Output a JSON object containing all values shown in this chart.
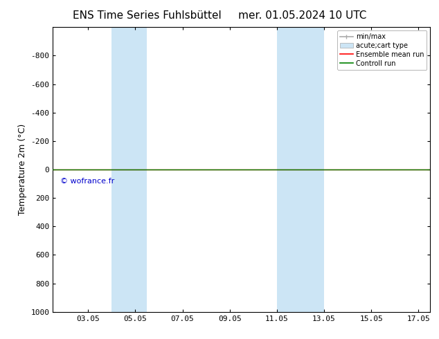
{
  "title_left": "ENS Time Series Fuhlsbüttel",
  "title_right": "mer. 01.05.2024 10 UTC",
  "ylabel": "Temperature 2m (°C)",
  "ylim_bottom": 1000,
  "ylim_top": -1000,
  "yticks": [
    -800,
    -600,
    -400,
    -200,
    0,
    200,
    400,
    600,
    800,
    1000
  ],
  "xlim_left": 1.5,
  "xlim_right": 17.5,
  "xtick_labels": [
    "03.05",
    "05.05",
    "07.05",
    "09.05",
    "11.05",
    "13.05",
    "15.05",
    "17.05"
  ],
  "xtick_positions": [
    3,
    5,
    7,
    9,
    11,
    13,
    15,
    17
  ],
  "shaded_bands": [
    {
      "xmin": 4.0,
      "xmax": 5.5
    },
    {
      "xmin": 11.0,
      "xmax": 13.0
    }
  ],
  "shade_color": "#cce5f5",
  "horizontal_line_y": 0,
  "hline_color_red": "#ff0000",
  "hline_color_green": "#008000",
  "copyright_text": "© wofrance.fr",
  "copyright_color": "#0000cc",
  "legend_entries": [
    {
      "label": "min/max",
      "color": "#aaaaaa",
      "type": "errorbar"
    },
    {
      "label": "acute;cart type",
      "color": "#cce5f5",
      "type": "box"
    },
    {
      "label": "Ensemble mean run",
      "color": "#ff0000",
      "type": "line"
    },
    {
      "label": "Controll run",
      "color": "#008000",
      "type": "line"
    }
  ],
  "background_color": "#ffffff",
  "title_fontsize": 11,
  "axis_fontsize": 9,
  "tick_fontsize": 8,
  "legend_fontsize": 7
}
